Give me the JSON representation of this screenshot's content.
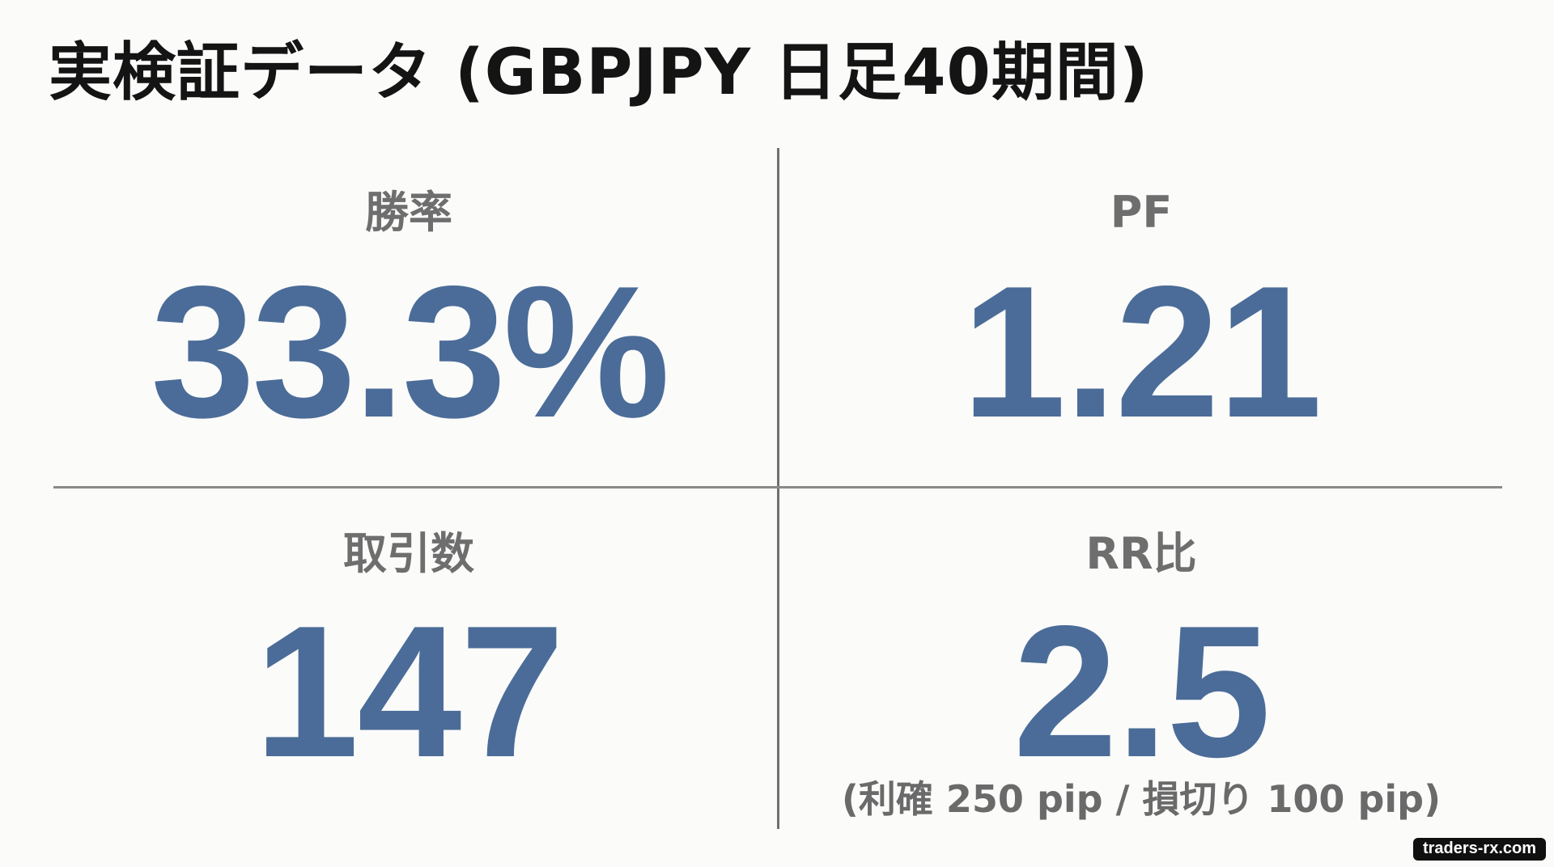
{
  "title": "実検証データ (GBPJPY 日足40期間)",
  "colors": {
    "value": "#4b6c98",
    "label": "#6e6e6e",
    "title": "#141414",
    "background": "#fbfbfa"
  },
  "stats": {
    "win_rate": {
      "label": "勝率",
      "value": "33.3%"
    },
    "profit_factor": {
      "label": "PF",
      "value": "1.21"
    },
    "trade_count": {
      "label": "取引数",
      "value": "147"
    },
    "rr_ratio": {
      "label": "RR比",
      "value": "2.5",
      "note": "(利確 250 pip / 損切り 100 pip)"
    }
  },
  "watermark": "traders-rx.com"
}
